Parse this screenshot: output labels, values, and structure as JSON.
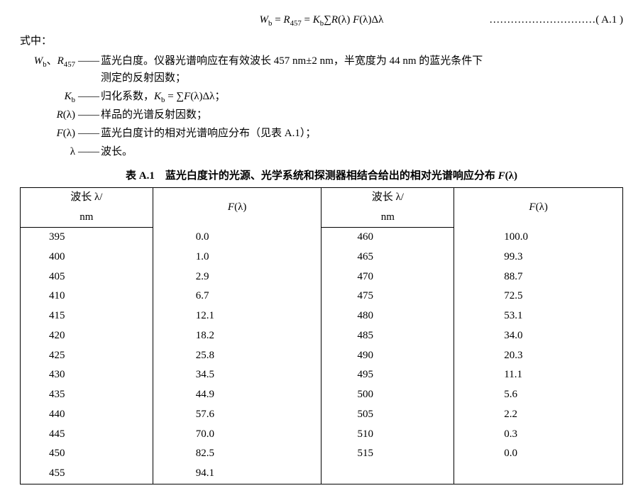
{
  "equation": {
    "body_html": "<i>W</i><sub>b</sub> = <i>R</i><sub>457</sub> = <i>K</i><sub>b</sub>∑<i>R</i>(λ)&nbsp;<i>F</i>(λ)Δλ",
    "tag": "…………………………( A.1 )"
  },
  "where_label": "式中：",
  "defs": [
    {
      "sym_html": "<i>W</i><sub>b</sub>、<i>R</i><sub>457</sub>",
      "txt_html": "蓝光白度。仪器光谱响应在有效波长 457 nm±2 nm，半宽度为 44 nm 的蓝光条件下<span class=\"cont\">测定的反射因数；</span>"
    },
    {
      "sym_html": "<i>K</i><sub>b</sub>",
      "txt_html": "归化系数，<i>K</i><sub>b</sub> = ∑<i>F</i>(λ)Δλ；"
    },
    {
      "sym_html": "<i>R</i>(λ)",
      "txt_html": "样品的光谱反射因数；"
    },
    {
      "sym_html": "<i>F</i>(λ)",
      "txt_html": "蓝光白度计的相对光谱响应分布（见表 A.1）；"
    },
    {
      "sym_html": "λ",
      "txt_html": "波长。"
    }
  ],
  "table": {
    "title_html": "表 A.1　蓝光白度计的光源、光学系统和探测器相结合给出的相对光谱响应分布 <i>F</i>(λ)",
    "head_wav_html": "波长 λ/",
    "head_unit": "nm",
    "head_f_html": "<i>F</i>(λ)",
    "left": [
      [
        "395",
        "0.0"
      ],
      [
        "400",
        "1.0"
      ],
      [
        "405",
        "2.9"
      ],
      [
        "410",
        "6.7"
      ],
      [
        "415",
        "12.1"
      ],
      [
        "420",
        "18.2"
      ],
      [
        "425",
        "25.8"
      ],
      [
        "430",
        "34.5"
      ],
      [
        "435",
        "44.9"
      ],
      [
        "440",
        "57.6"
      ],
      [
        "445",
        "70.0"
      ],
      [
        "450",
        "82.5"
      ],
      [
        "455",
        "94.1"
      ]
    ],
    "right": [
      [
        "460",
        "100.0"
      ],
      [
        "465",
        "99.3"
      ],
      [
        "470",
        "88.7"
      ],
      [
        "475",
        "72.5"
      ],
      [
        "480",
        "53.1"
      ],
      [
        "485",
        "34.0"
      ],
      [
        "490",
        "20.3"
      ],
      [
        "495",
        "11.1"
      ],
      [
        "500",
        "5.6"
      ],
      [
        "505",
        "2.2"
      ],
      [
        "510",
        "0.3"
      ],
      [
        "515",
        "0.0"
      ]
    ]
  }
}
